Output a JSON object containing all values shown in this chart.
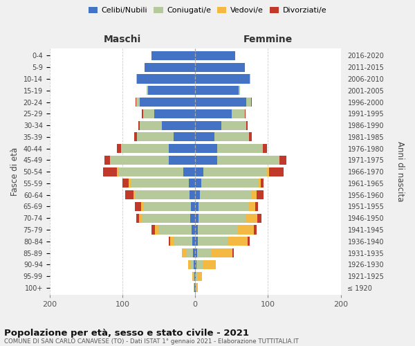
{
  "age_groups": [
    "100+",
    "95-99",
    "90-94",
    "85-89",
    "80-84",
    "75-79",
    "70-74",
    "65-69",
    "60-64",
    "55-59",
    "50-54",
    "45-49",
    "40-44",
    "35-39",
    "30-34",
    "25-29",
    "20-24",
    "15-19",
    "10-14",
    "5-9",
    "0-4"
  ],
  "birth_years": [
    "≤ 1920",
    "1921-1925",
    "1926-1930",
    "1931-1935",
    "1936-1940",
    "1941-1945",
    "1946-1950",
    "1951-1955",
    "1956-1960",
    "1961-1965",
    "1966-1970",
    "1971-1975",
    "1976-1980",
    "1981-1985",
    "1986-1990",
    "1991-1995",
    "1996-2000",
    "2001-2005",
    "2006-2010",
    "2011-2015",
    "2016-2020"
  ],
  "maschi_celibi": [
    1,
    1,
    2,
    3,
    4,
    5,
    7,
    6,
    8,
    9,
    16,
    36,
    36,
    30,
    46,
    56,
    76,
    65,
    80,
    70,
    60
  ],
  "maschi_coniugati": [
    1,
    2,
    5,
    10,
    25,
    45,
    65,
    65,
    75,
    80,
    90,
    80,
    65,
    50,
    30,
    15,
    5,
    2,
    1,
    0,
    0
  ],
  "maschi_vedovi": [
    0,
    1,
    3,
    5,
    5,
    5,
    5,
    3,
    2,
    2,
    2,
    1,
    1,
    0,
    0,
    0,
    0,
    0,
    0,
    0,
    0
  ],
  "maschi_divorziati": [
    0,
    0,
    0,
    0,
    2,
    5,
    4,
    9,
    11,
    9,
    19,
    8,
    6,
    4,
    2,
    2,
    1,
    0,
    0,
    0,
    0
  ],
  "femmine_celibi": [
    1,
    1,
    2,
    3,
    4,
    4,
    5,
    5,
    6,
    8,
    11,
    30,
    30,
    26,
    36,
    50,
    70,
    60,
    75,
    68,
    55
  ],
  "femmine_coniugati": [
    1,
    3,
    8,
    20,
    40,
    55,
    65,
    68,
    72,
    78,
    88,
    85,
    62,
    48,
    34,
    18,
    7,
    2,
    1,
    0,
    0
  ],
  "femmine_vedovi": [
    2,
    5,
    18,
    28,
    28,
    22,
    15,
    9,
    6,
    4,
    2,
    1,
    1,
    0,
    0,
    0,
    0,
    0,
    0,
    0,
    0
  ],
  "femmine_divorziati": [
    0,
    0,
    0,
    2,
    3,
    3,
    6,
    4,
    10,
    4,
    20,
    9,
    6,
    4,
    2,
    1,
    1,
    0,
    0,
    0,
    0
  ],
  "colors": {
    "celibi": "#4472C4",
    "coniugati": "#b5c99a",
    "vedovi": "#f4b942",
    "divorziati": "#c0392b"
  },
  "legend_labels": [
    "Celibi/Nubili",
    "Coniugati/e",
    "Vedovi/e",
    "Divorziati/e"
  ],
  "label_maschi": "Maschi",
  "label_femmine": "Femmine",
  "ylabel_left": "Fasce di età",
  "ylabel_right": "Anni di nascita",
  "title": "Popolazione per età, sesso e stato civile - 2021",
  "subtitle": "COMUNE DI SAN CARLO CANAVESE (TO) - Dati ISTAT 1° gennaio 2021 - Elaborazione TUTTITALIA.IT",
  "xlim": 200,
  "bg_color": "#f0f0f0",
  "plot_bg": "#ffffff"
}
